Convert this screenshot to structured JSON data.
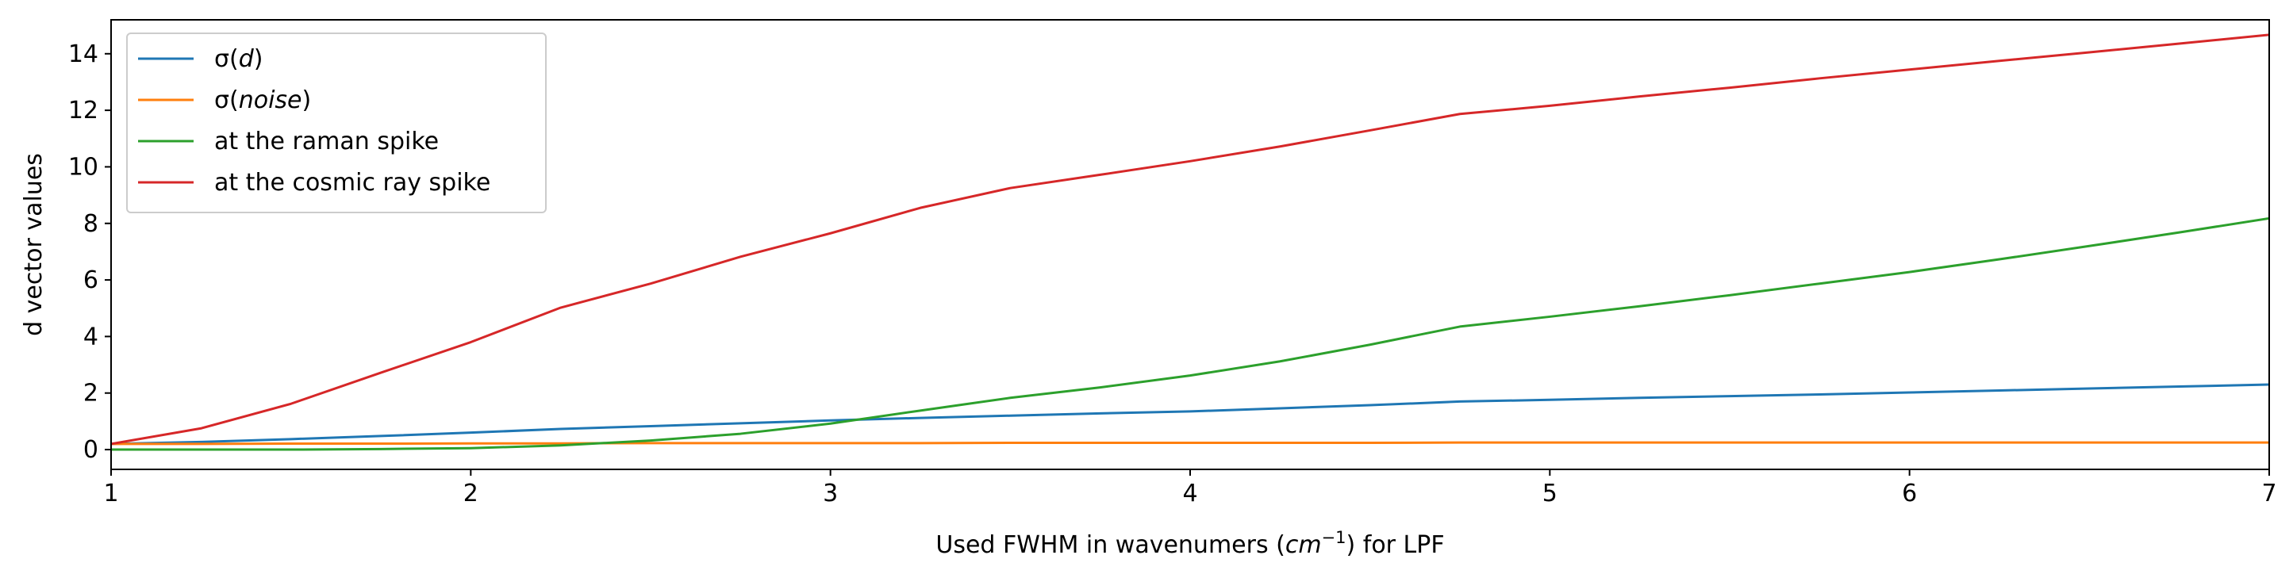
{
  "chart_data": {
    "type": "line",
    "xlabel": "Used FWHM in wavenumers (cm⁻¹) for LPF",
    "xlabel_parts": {
      "before": "Used FWHM in wavenumers (",
      "math": "cm",
      "sup": "−1",
      "after": ") for LPF"
    },
    "ylabel": "d vector values",
    "xlim": [
      1,
      7
    ],
    "ylim": [
      -0.7,
      15.2
    ],
    "xticks": [
      1,
      2,
      3,
      4,
      5,
      6,
      7
    ],
    "yticks": [
      0,
      2,
      4,
      6,
      8,
      10,
      12,
      14
    ],
    "legend_position": "upper-left",
    "grid": false,
    "x": [
      1.0,
      1.25,
      1.5,
      1.75,
      2.0,
      2.25,
      2.5,
      2.75,
      3.0,
      3.25,
      3.5,
      3.75,
      4.0,
      4.25,
      4.5,
      4.75,
      5.0,
      5.25,
      5.5,
      5.75,
      6.0,
      6.25,
      6.5,
      6.75,
      7.0
    ],
    "series": [
      {
        "name": "σ(d)",
        "legend_prefix": "σ(",
        "legend_math": "d",
        "legend_suffix": ")",
        "color": "#1f77b4",
        "values": [
          0.2,
          0.27,
          0.37,
          0.48,
          0.6,
          0.73,
          0.83,
          0.93,
          1.03,
          1.12,
          1.2,
          1.28,
          1.35,
          1.46,
          1.57,
          1.7,
          1.76,
          1.83,
          1.89,
          1.95,
          2.02,
          2.09,
          2.16,
          2.23,
          2.3
        ]
      },
      {
        "name": "σ(noise)",
        "legend_prefix": "σ(",
        "legend_math": "noise",
        "legend_suffix": ")",
        "color": "#ff7f0e",
        "values": [
          0.2,
          0.2,
          0.21,
          0.21,
          0.22,
          0.22,
          0.23,
          0.23,
          0.23,
          0.23,
          0.24,
          0.24,
          0.24,
          0.24,
          0.24,
          0.25,
          0.25,
          0.25,
          0.25,
          0.25,
          0.25,
          0.25,
          0.25,
          0.25,
          0.25
        ]
      },
      {
        "name": "at the raman spike",
        "legend_prefix": "at the raman spike",
        "legend_math": "",
        "legend_suffix": "",
        "color": "#2ca02c",
        "values": [
          0.0,
          0.0,
          0.0,
          0.02,
          0.05,
          0.15,
          0.32,
          0.56,
          0.92,
          1.38,
          1.83,
          2.2,
          2.62,
          3.12,
          3.71,
          4.35,
          4.7,
          5.07,
          5.46,
          5.87,
          6.28,
          6.73,
          7.2,
          7.68,
          8.18
        ]
      },
      {
        "name": "at the cosmic ray spike",
        "legend_prefix": "at the cosmic ray spike",
        "legend_math": "",
        "legend_suffix": "",
        "color": "#d62728",
        "values": [
          0.2,
          0.75,
          1.62,
          2.72,
          3.8,
          5.02,
          5.87,
          6.82,
          7.65,
          8.55,
          9.25,
          9.72,
          10.2,
          10.72,
          11.29,
          11.87,
          12.16,
          12.49,
          12.8,
          13.13,
          13.44,
          13.75,
          14.05,
          14.36,
          14.67
        ]
      }
    ]
  }
}
